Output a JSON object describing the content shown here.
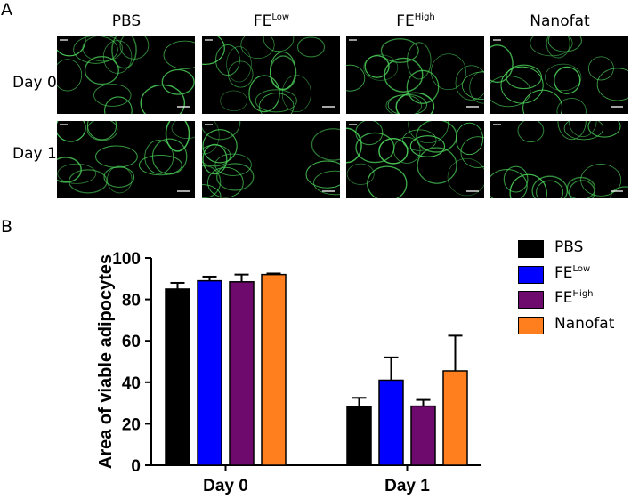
{
  "panel_a": {
    "letter": "A",
    "columns": [
      {
        "base": "PBS",
        "sup": ""
      },
      {
        "base": "FE",
        "sup": "Low"
      },
      {
        "base": "FE",
        "sup": "High"
      },
      {
        "base": "Nanofat",
        "sup": ""
      }
    ],
    "rows": [
      "Day 0",
      "Day 1"
    ],
    "stain_color": "#4cd35a"
  },
  "panel_b": {
    "letter": "B"
  },
  "chart_data": {
    "type": "bar",
    "categories": [
      "Day 0",
      "Day 1"
    ],
    "series": [
      {
        "name": "PBS",
        "name_base": "PBS",
        "name_sup": "",
        "color": "#000000",
        "values": [
          85,
          28
        ],
        "errors": [
          3,
          4.5
        ]
      },
      {
        "name": "FELow",
        "name_base": "FE",
        "name_sup": "Low",
        "color": "#0000ff",
        "values": [
          89,
          41
        ],
        "errors": [
          2,
          11
        ]
      },
      {
        "name": "FEHigh",
        "name_base": "FE",
        "name_sup": "High",
        "color": "#6e0a6e",
        "values": [
          88.5,
          28.5
        ],
        "errors": [
          3.5,
          3
        ]
      },
      {
        "name": "Nanofat",
        "name_base": "Nanofat",
        "name_sup": "",
        "color": "#ff7f1e",
        "values": [
          92,
          45.5
        ],
        "errors": [
          0.5,
          17
        ]
      }
    ],
    "xlabel": "",
    "ylabel": "Area of viable adipocytes",
    "ylim": [
      0,
      100
    ],
    "yticks": [
      0,
      20,
      40,
      60,
      80,
      100
    ],
    "grid": false,
    "legend": "right"
  }
}
